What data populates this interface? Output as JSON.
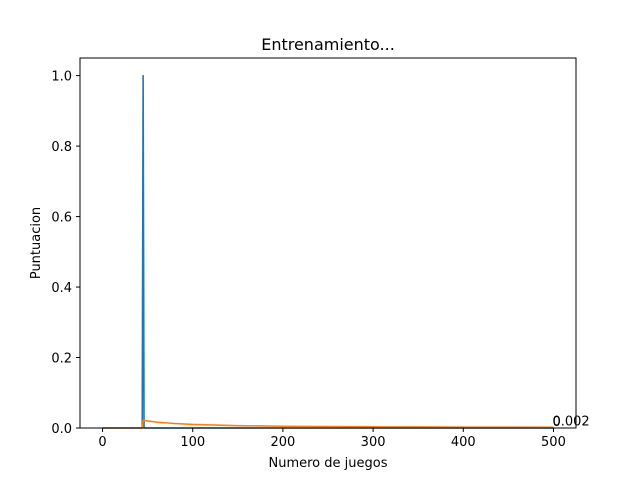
{
  "chart_data": {
    "type": "line",
    "title": "Entrenamiento...",
    "xlabel": "Numero de juegos",
    "ylabel": "Puntuacion",
    "xlim": [
      -25,
      525
    ],
    "ylim": [
      0,
      1.05
    ],
    "xticks": [
      0,
      100,
      200,
      300,
      400,
      500
    ],
    "yticks": [
      0.0,
      0.2,
      0.4,
      0.6,
      0.8,
      1.0
    ],
    "grid": false,
    "legend": "none",
    "series": [
      {
        "color": "#1f77b4",
        "x": [
          0,
          44,
          45,
          46,
          500
        ],
        "y": [
          0,
          0,
          1.0,
          0,
          0
        ]
      },
      {
        "color": "#ff7f0e",
        "x": [
          0,
          44,
          45,
          50,
          60,
          80,
          100,
          150,
          200,
          250,
          300,
          350,
          400,
          450,
          500
        ],
        "y": [
          0,
          0,
          0.022,
          0.02,
          0.0167,
          0.0128,
          0.01,
          0.0067,
          0.005,
          0.004,
          0.0033,
          0.0029,
          0.0025,
          0.0022,
          0.002
        ]
      }
    ],
    "annotations": [
      {
        "text": "0",
        "x": 500,
        "y": 0.0
      },
      {
        "text": "0.002",
        "x": 500,
        "y": 0.002
      }
    ]
  }
}
